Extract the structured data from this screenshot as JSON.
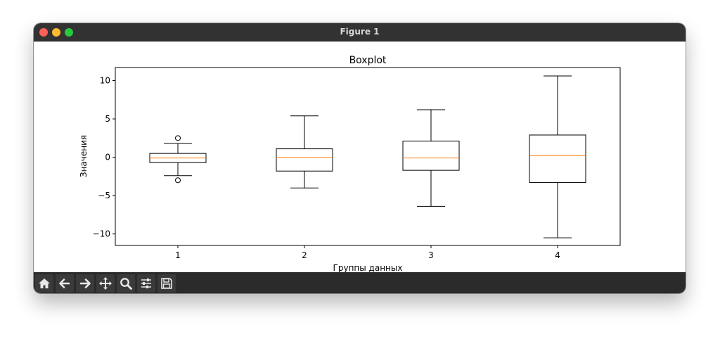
{
  "window": {
    "title": "Figure 1"
  },
  "toolbar": {
    "buttons": [
      {
        "name": "home",
        "icon": "home-icon"
      },
      {
        "name": "back",
        "icon": "arrow-left-icon"
      },
      {
        "name": "forward",
        "icon": "arrow-right-icon"
      },
      {
        "name": "pan",
        "icon": "move-icon"
      },
      {
        "name": "zoom",
        "icon": "magnifier-icon"
      },
      {
        "name": "configure",
        "icon": "sliders-icon"
      },
      {
        "name": "save",
        "icon": "floppy-disk-icon"
      }
    ]
  },
  "chart_data": {
    "type": "boxplot",
    "title": "Boxplot",
    "xlabel": "Группы данных",
    "ylabel": "Значения",
    "categories": [
      "1",
      "2",
      "3",
      "4"
    ],
    "ylim": [
      -11.5,
      11.7
    ],
    "yticks": [
      -10,
      -5,
      0,
      5,
      10
    ],
    "ytick_labels": [
      "−10",
      "−5",
      "0",
      "5",
      "10"
    ],
    "grid": false,
    "colors": {
      "box": "#000000",
      "median": "#ff7f0e"
    },
    "boxes": [
      {
        "label": "1",
        "whislo": -2.4,
        "q1": -0.7,
        "med": -0.1,
        "q3": 0.5,
        "whishi": 1.8,
        "fliers": [
          2.5,
          -3.0
        ]
      },
      {
        "label": "2",
        "whislo": -4.0,
        "q1": -1.8,
        "med": 0.0,
        "q3": 1.1,
        "whishi": 5.4,
        "fliers": []
      },
      {
        "label": "3",
        "whislo": -6.4,
        "q1": -1.7,
        "med": -0.1,
        "q3": 2.1,
        "whishi": 6.2,
        "fliers": []
      },
      {
        "label": "4",
        "whislo": -10.5,
        "q1": -3.3,
        "med": 0.2,
        "q3": 2.9,
        "whishi": 10.6,
        "fliers": []
      }
    ]
  }
}
